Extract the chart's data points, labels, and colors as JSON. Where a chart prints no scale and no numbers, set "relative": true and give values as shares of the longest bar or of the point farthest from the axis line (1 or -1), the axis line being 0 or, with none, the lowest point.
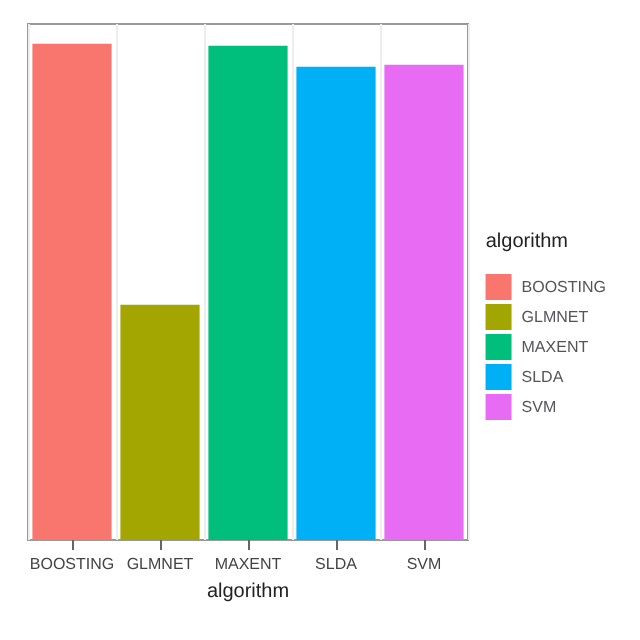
{
  "chart_data": {
    "type": "bar",
    "relative": true,
    "xlabel": "algorithm",
    "legend_title": "algorithm",
    "legend": "right",
    "grid": true,
    "categories": [
      "BOOSTING",
      "GLMNET",
      "MAXENT",
      "SLDA",
      "SVM"
    ],
    "series": [
      {
        "name": "BOOSTING",
        "color": "#f8766d",
        "values": [
          1,
          null,
          null,
          null,
          null
        ]
      },
      {
        "name": "GLMNET",
        "color": "#a3a500",
        "values": [
          null,
          0.474,
          null,
          null,
          null
        ]
      },
      {
        "name": "MAXENT",
        "color": "#00bf7d",
        "values": [
          null,
          null,
          0.996,
          null,
          null
        ]
      },
      {
        "name": "SLDA",
        "color": "#00b0f6",
        "values": [
          null,
          null,
          null,
          0.954,
          null
        ]
      },
      {
        "name": "SVM",
        "color": "#e76bf3",
        "values": [
          null,
          null,
          null,
          null,
          0.958
        ]
      }
    ]
  }
}
